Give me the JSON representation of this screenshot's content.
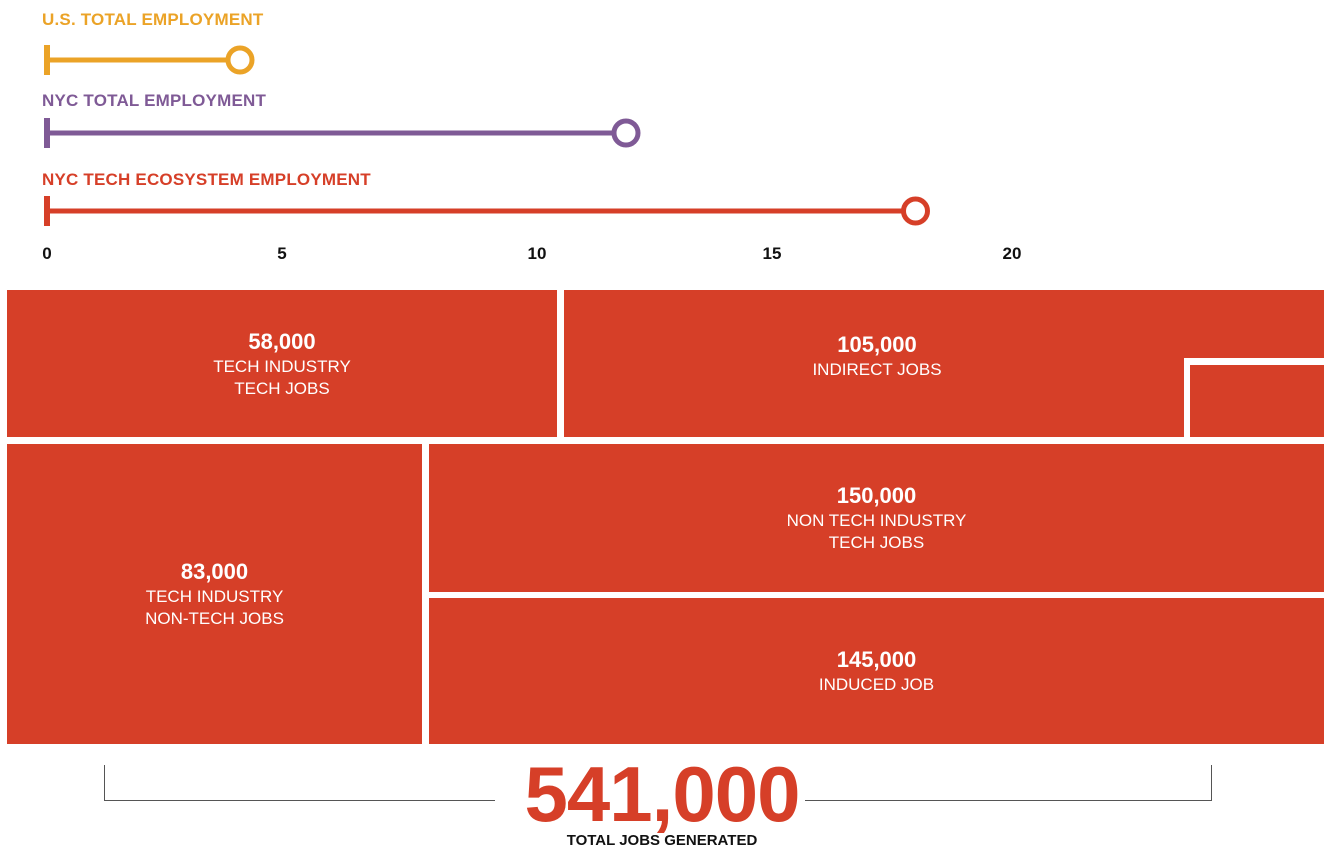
{
  "chart_data": [
    {
      "type": "line",
      "series": [
        {
          "name": "U.S. TOTAL EMPLOYMENT",
          "color": "#EBA327",
          "start": 0,
          "end": 4
        },
        {
          "name": "NYC TOTAL EMPLOYMENT",
          "color": "#7F5A96",
          "start": 0,
          "end": 12
        },
        {
          "name": "NYC TECH ECOSYSTEM EMPLOYMENT",
          "color": "#D63F28",
          "start": 0,
          "end": 18
        }
      ],
      "x_ticks": [
        "0",
        "5",
        "10",
        "15",
        "20"
      ],
      "xlim": [
        0,
        20
      ],
      "grid": false
    },
    {
      "type": "bar",
      "color": "#D63F28",
      "blocks": [
        {
          "value": "58,000",
          "label": [
            "TECH INDUSTRY",
            "TECH JOBS"
          ]
        },
        {
          "value": "105,000",
          "label": [
            "INDIRECT JOBS"
          ]
        },
        {
          "value": "83,000",
          "label": [
            "TECH INDUSTRY",
            "NON-TECH JOBS"
          ]
        },
        {
          "value": "150,000",
          "label": [
            "NON TECH INDUSTRY",
            "TECH JOBS"
          ]
        },
        {
          "value": "145,000",
          "label": [
            "INDUCED JOB"
          ]
        }
      ],
      "total": {
        "value": "541,000",
        "label": "TOTAL JOBS GENERATED"
      }
    }
  ]
}
